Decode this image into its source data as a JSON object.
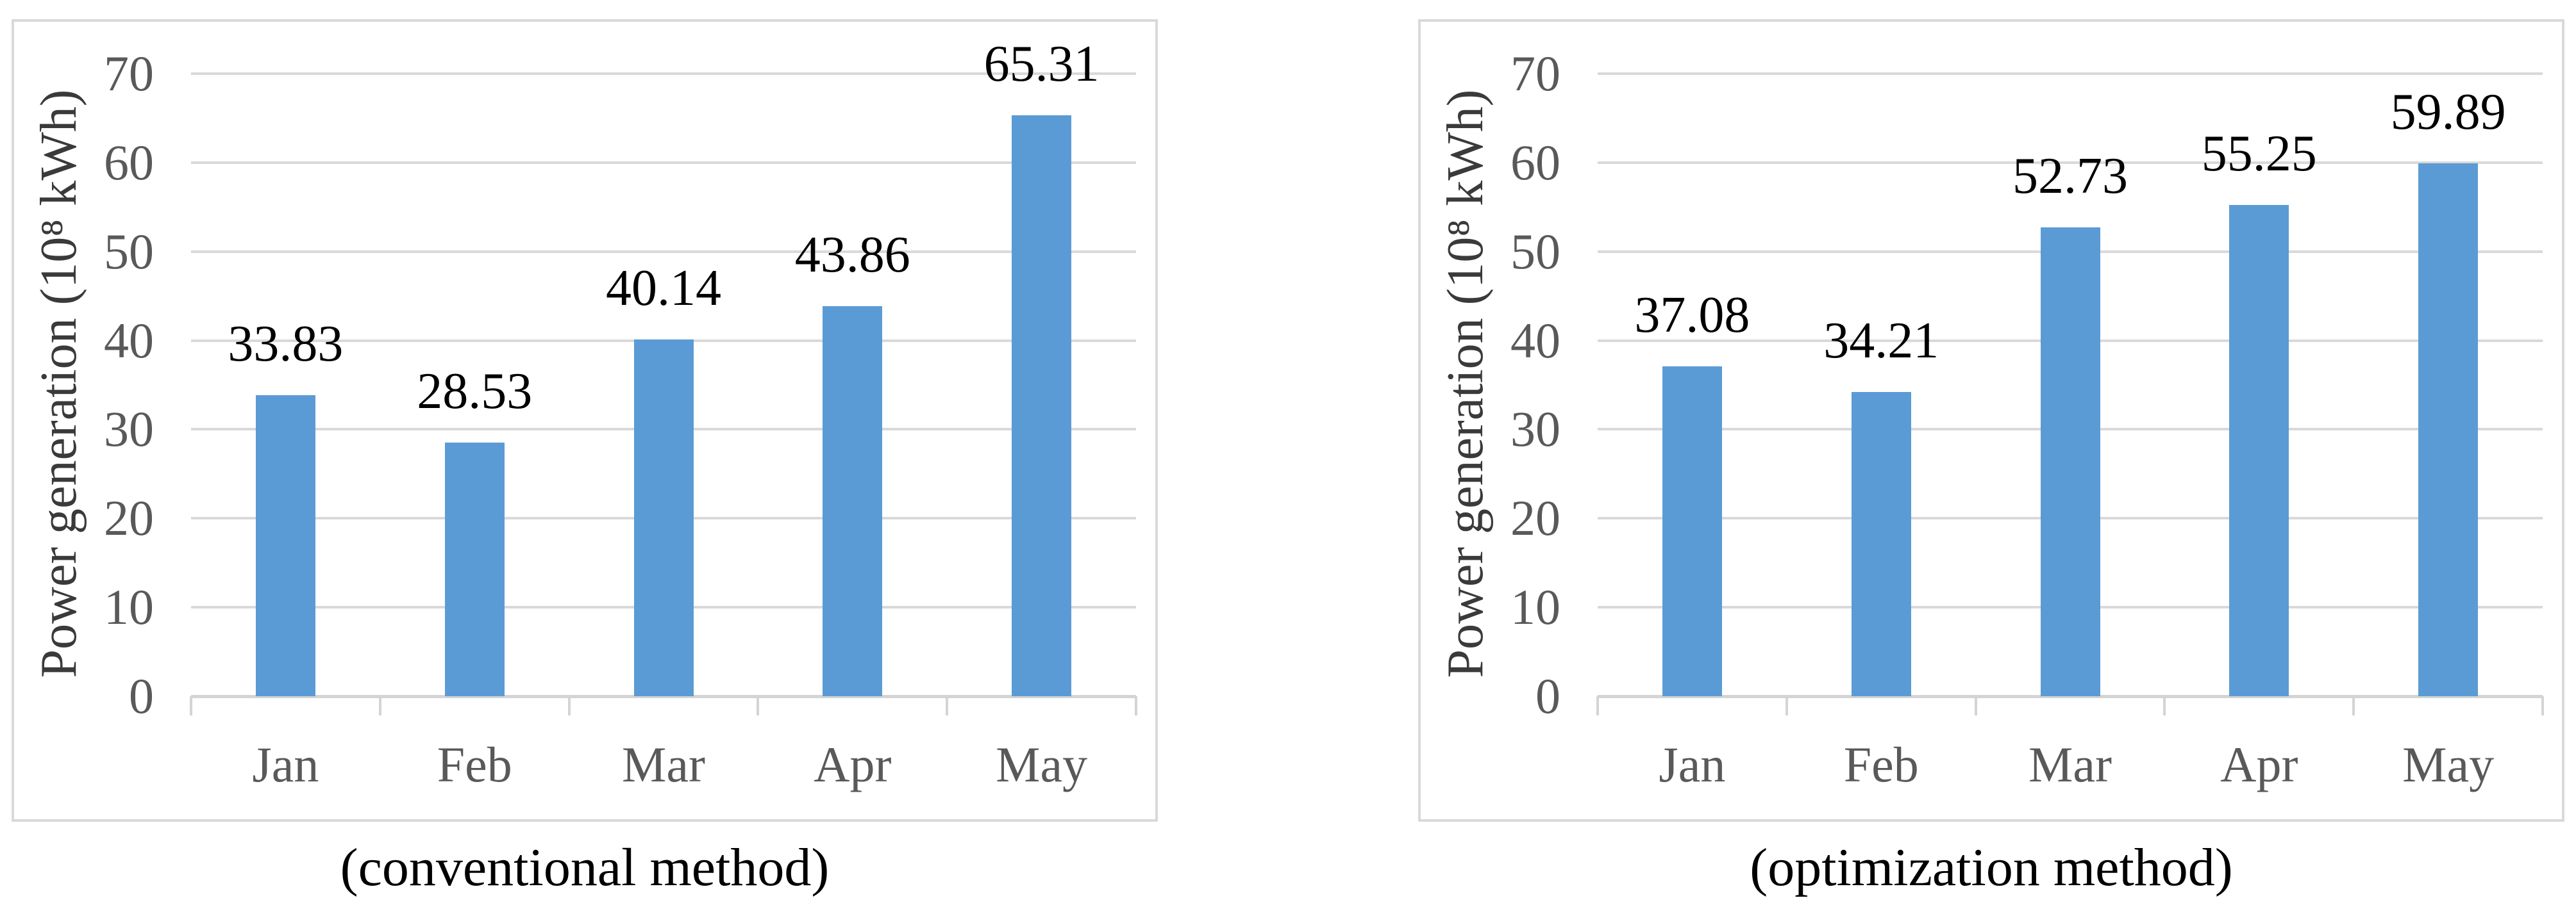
{
  "colors": {
    "bar": "#5B9BD5",
    "gridline": "#D9D9D9",
    "axis_line": "#D4D4D4",
    "chart_border": "#D9D9D9",
    "tick_label": "#595959",
    "month_label": "#595959",
    "data_label": "#000000",
    "axis_title": "#3A3A3A",
    "caption": "#000000",
    "background": "#FFFFFF"
  },
  "chart_data": [
    {
      "type": "bar",
      "title": "",
      "categories": [
        "Jan",
        "Feb",
        "Mar",
        "Apr",
        "May"
      ],
      "values": [
        33.83,
        28.53,
        40.14,
        43.86,
        65.31
      ],
      "data_labels": [
        "33.83",
        "28.53",
        "40.14",
        "43.86",
        "65.31"
      ],
      "xlabel": "",
      "ylabel": "Power generation (10⁸ kWh)",
      "ylim": [
        0,
        70
      ],
      "yticks": [
        0,
        10,
        20,
        30,
        40,
        50,
        60,
        70
      ],
      "grid": true,
      "legend_position": "none",
      "bar_color": "#5B9BD5",
      "caption": "(conventional method)"
    },
    {
      "type": "bar",
      "title": "",
      "categories": [
        "Jan",
        "Feb",
        "Mar",
        "Apr",
        "May"
      ],
      "values": [
        37.08,
        34.21,
        52.73,
        55.25,
        59.89
      ],
      "data_labels": [
        "37.08",
        "34.21",
        "52.73",
        "55.25",
        "59.89"
      ],
      "xlabel": "",
      "ylabel": "Power generation (10⁸ kWh)",
      "ylim": [
        0,
        70
      ],
      "yticks": [
        0,
        10,
        20,
        30,
        40,
        50,
        60,
        70
      ],
      "grid": true,
      "legend_position": "none",
      "bar_color": "#5B9BD5",
      "caption": "(optimization method)"
    }
  ]
}
